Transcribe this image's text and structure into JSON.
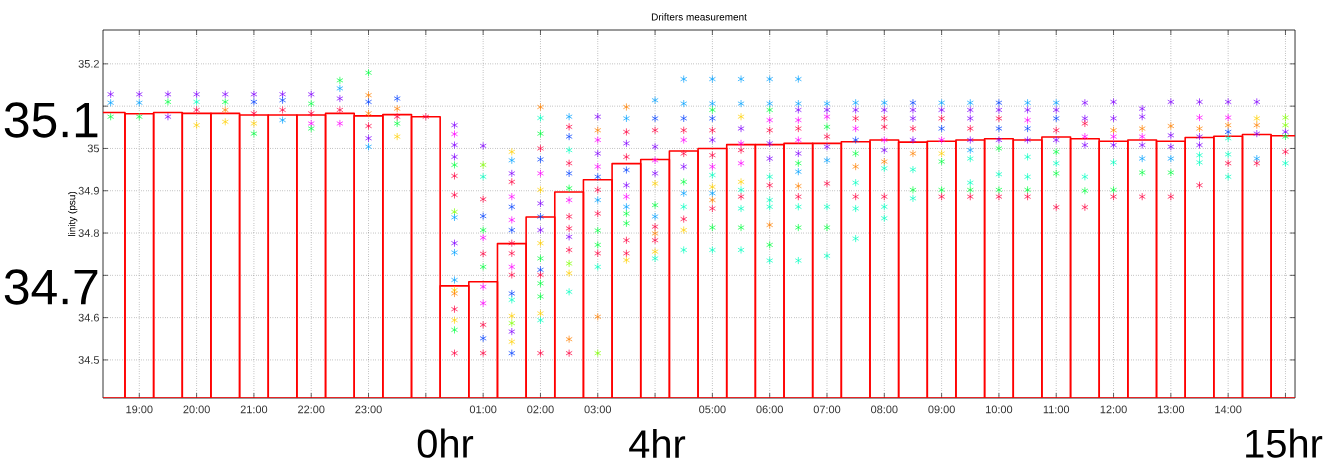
{
  "chart_data": {
    "type": "bar",
    "title": "Drifters measurement",
    "ylabel": "linity (psu)",
    "xlim": [
      "2000-01-01T18:22",
      "2000-01-02T15:10"
    ],
    "ylim": [
      34.41,
      35.28
    ],
    "grid": true,
    "marker": "cross",
    "xticks": [
      {
        "value": "2000-01-01T19:00",
        "label": "19:00"
      },
      {
        "value": "2000-01-01T20:00",
        "label": "20:00"
      },
      {
        "value": "2000-01-01T21:00",
        "label": "21:00"
      },
      {
        "value": "2000-01-01T22:00",
        "label": "22:00"
      },
      {
        "value": "2000-01-01T23:00",
        "label": "23:00"
      },
      {
        "value": "2000-01-02T00:00",
        "label": null
      },
      {
        "value": "2000-01-02T01:00",
        "label": "01:00"
      },
      {
        "value": "2000-01-02T02:00",
        "label": "02:00"
      },
      {
        "value": "2000-01-02T03:00",
        "label": "03:00"
      },
      {
        "value": "2000-01-02T04:00",
        "label": null
      },
      {
        "value": "2000-01-02T05:00",
        "label": "05:00"
      },
      {
        "value": "2000-01-02T06:00",
        "label": "06:00"
      },
      {
        "value": "2000-01-02T07:00",
        "label": "07:00"
      },
      {
        "value": "2000-01-02T08:00",
        "label": "08:00"
      },
      {
        "value": "2000-01-02T09:00",
        "label": "09:00"
      },
      {
        "value": "2000-01-02T10:00",
        "label": "10:00"
      },
      {
        "value": "2000-01-02T11:00",
        "label": "11:00"
      },
      {
        "value": "2000-01-02T12:00",
        "label": "12:00"
      },
      {
        "value": "2000-01-02T13:00",
        "label": "13:00"
      },
      {
        "value": "2000-01-02T14:00",
        "label": "14:00"
      },
      {
        "value": "2000-01-02T15:00",
        "label": null
      }
    ],
    "yticks": [
      34.5,
      34.6,
      {
        "value": 34.7,
        "label": null
      },
      34.8,
      34.9,
      35,
      {
        "value": 35.1,
        "label": null
      },
      35.2
    ],
    "annotations": [
      "35.1",
      "34.7",
      "0hr",
      "4hr",
      "15hr"
    ],
    "series": [
      {
        "color": "#ff0000",
        "x": [
          "2000-01-01T18:30",
          "2000-01-01T19:00",
          "2000-01-01T19:30",
          "2000-01-01T20:00",
          "2000-01-01T20:30",
          "2000-01-01T21:00",
          "2000-01-01T21:30",
          "2000-01-01T22:00",
          "2000-01-01T22:30",
          "2000-01-01T23:00",
          "2000-01-01T23:30",
          "2000-01-02T00:00",
          "2000-01-02T00:30",
          "2000-01-02T01:00",
          "2000-01-02T01:30",
          "2000-01-02T02:00",
          "2000-01-02T02:30",
          "2000-01-02T03:00",
          "2000-01-02T03:30",
          "2000-01-02T04:00",
          "2000-01-02T04:30",
          "2000-01-02T05:00",
          "2000-01-02T05:30",
          "2000-01-02T06:00",
          "2000-01-02T06:30",
          "2000-01-02T07:00",
          "2000-01-02T07:30",
          "2000-01-02T08:00",
          "2000-01-02T08:30",
          "2000-01-02T09:00",
          "2000-01-02T09:30",
          "2000-01-02T10:00",
          "2000-01-02T10:30",
          "2000-01-02T11:00",
          "2000-01-02T11:30",
          "2000-01-02T12:00",
          "2000-01-02T12:30",
          "2000-01-02T13:00",
          "2000-01-02T13:30",
          "2000-01-02T14:00",
          "2000-01-02T14:30",
          "2000-01-02T15:00"
        ],
        "values": [
          35.085,
          35.082,
          35.085,
          35.083,
          35.083,
          35.079,
          35.079,
          35.079,
          35.083,
          35.077,
          35.08,
          35.075,
          34.675,
          34.685,
          34.775,
          34.838,
          34.897,
          34.926,
          34.964,
          34.974,
          34.994,
          35.0,
          35.009,
          35.009,
          35.012,
          35.012,
          35.016,
          35.02,
          35.015,
          35.017,
          35.02,
          35.023,
          35.02,
          35.027,
          35.023,
          35.017,
          35.02,
          35.017,
          35.026,
          35.029,
          35.033,
          35.03
        ]
      },
      {
        "type": "scatter",
        "x": [
          "2000-01-01T18:30",
          "2000-01-01T18:30",
          "2000-01-01T18:30"
        ],
        "values": [
          35.128,
          35.108,
          35.075
        ],
        "colors": [
          "#8000ff",
          "#00a0ff",
          "#00ff40"
        ]
      },
      {
        "type": "scatter",
        "x": [
          "2000-01-01T19:00",
          "2000-01-01T19:00",
          "2000-01-01T19:00"
        ],
        "values": [
          35.128,
          35.108,
          35.075
        ],
        "colors": [
          "#8000ff",
          "#00a0ff",
          "#00ff40"
        ]
      },
      {
        "type": "scatter",
        "x": [
          "2000-01-01T19:30",
          "2000-01-01T19:30",
          "2000-01-01T19:30"
        ],
        "values": [
          35.128,
          35.11,
          35.075
        ],
        "colors": [
          "#8000ff",
          "#00ff40",
          "#8000ff"
        ]
      },
      {
        "type": "scatter",
        "x": [
          "2000-01-01T20:00",
          "2000-01-01T20:00",
          "2000-01-01T20:00",
          "2000-01-01T20:00"
        ],
        "values": [
          35.128,
          35.11,
          35.091,
          35.055
        ],
        "colors": [
          "#8000ff",
          "#00ffc0",
          "#ff0040",
          "#ffd000"
        ]
      },
      {
        "type": "scatter",
        "x": [
          "2000-01-01T20:30",
          "2000-01-01T20:30",
          "2000-01-01T20:30",
          "2000-01-01T20:30"
        ],
        "values": [
          35.128,
          35.11,
          35.091,
          35.063
        ],
        "colors": [
          "#8000ff",
          "#00ff40",
          "#ff8000",
          "#ffd000"
        ]
      },
      {
        "type": "scatter",
        "x": [
          "2000-01-01T21:00",
          "2000-01-01T21:00",
          "2000-01-01T21:00",
          "2000-01-01T21:00",
          "2000-01-01T21:00"
        ],
        "values": [
          35.128,
          35.11,
          35.083,
          35.059,
          35.035
        ],
        "colors": [
          "#8000ff",
          "#0040ff",
          "#ff0040",
          "#ffd000",
          "#00ff40"
        ]
      },
      {
        "type": "scatter",
        "x": [
          "2000-01-01T21:30",
          "2000-01-01T21:30",
          "2000-01-01T21:30",
          "2000-01-01T21:30"
        ],
        "values": [
          35.128,
          35.114,
          35.091,
          35.067
        ],
        "colors": [
          "#8000ff",
          "#0040ff",
          "#ff0040",
          "#00a0ff"
        ]
      },
      {
        "type": "scatter",
        "x": [
          "2000-01-01T22:00",
          "2000-01-01T22:00",
          "2000-01-01T22:00",
          "2000-01-01T22:00",
          "2000-01-01T22:00"
        ],
        "values": [
          35.128,
          35.106,
          35.083,
          35.059,
          35.047
        ],
        "colors": [
          "#8000ff",
          "#00ff40",
          "#ff0040",
          "#ff00ff",
          "#00ff40"
        ]
      },
      {
        "type": "scatter",
        "x": [
          "2000-01-01T22:30",
          "2000-01-01T22:30",
          "2000-01-01T22:30",
          "2000-01-01T22:30",
          "2000-01-01T22:30"
        ],
        "values": [
          35.161,
          35.142,
          35.118,
          35.091,
          35.059
        ],
        "colors": [
          "#00ff40",
          "#00a0ff",
          "#8000ff",
          "#ff0040",
          "#ff00ff"
        ]
      },
      {
        "type": "scatter",
        "x": [
          "2000-01-01T23:00",
          "2000-01-01T23:00",
          "2000-01-01T23:00",
          "2000-01-01T23:00",
          "2000-01-01T23:00",
          "2000-01-01T23:00",
          "2000-01-01T23:00"
        ],
        "values": [
          35.179,
          35.126,
          35.11,
          35.083,
          35.053,
          35.024,
          35.004
        ],
        "colors": [
          "#00ff40",
          "#ff8000",
          "#0040ff",
          "#ff8000",
          "#ff0040",
          "#8000ff",
          "#00a0ff"
        ]
      },
      {
        "type": "scatter",
        "x": [
          "2000-01-01T23:30",
          "2000-01-01T23:30",
          "2000-01-01T23:30",
          "2000-01-01T23:30",
          "2000-01-01T23:30"
        ],
        "values": [
          35.118,
          35.094,
          35.075,
          35.059,
          35.028
        ],
        "colors": [
          "#0040ff",
          "#ff8000",
          "#ff0040",
          "#00ff40",
          "#ffd000"
        ]
      },
      {
        "type": "scatter",
        "x": [
          "2000-01-02T00:00"
        ],
        "values": [
          35.075
        ],
        "colors": [
          "#ff0040"
        ]
      },
      {
        "type": "scatter",
        "x": [
          "2000-01-02T00:30",
          "2000-01-02T00:30",
          "2000-01-02T00:30",
          "2000-01-02T00:30",
          "2000-01-02T00:30",
          "2000-01-02T00:30",
          "2000-01-02T00:30",
          "2000-01-02T00:30",
          "2000-01-02T00:30",
          "2000-01-02T00:30",
          "2000-01-02T00:30",
          "2000-01-02T00:30",
          "2000-01-02T00:30",
          "2000-01-02T00:30",
          "2000-01-02T00:30",
          "2000-01-02T00:30",
          "2000-01-02T00:30",
          "2000-01-02T00:30"
        ],
        "values": [
          35.055,
          35.034,
          35.008,
          34.98,
          34.961,
          34.935,
          34.89,
          34.85,
          34.837,
          34.776,
          34.754,
          34.689,
          34.665,
          34.657,
          34.62,
          34.594,
          34.571,
          34.516
        ],
        "colors": [
          "#8000ff",
          "#ff00ff",
          "#8000ff",
          "#8000ff",
          "#00ff40",
          "#ff0040",
          "#ff0040",
          "#80ff00",
          "#00a0ff",
          "#8000ff",
          "#00a0ff",
          "#00a0ff",
          "#ffd000",
          "#ff8000",
          "#ff0040",
          "#ffd000",
          "#00ff40",
          "#ff0040"
        ]
      },
      {
        "type": "scatter",
        "x": [
          "2000-01-02T01:00",
          "2000-01-02T01:00",
          "2000-01-02T01:00",
          "2000-01-02T01:00",
          "2000-01-02T01:00",
          "2000-01-02T01:00",
          "2000-01-02T01:00",
          "2000-01-02T01:00",
          "2000-01-02T01:00",
          "2000-01-02T01:00",
          "2000-01-02T01:00",
          "2000-01-02T01:00",
          "2000-01-02T01:00",
          "2000-01-02T01:00"
        ],
        "values": [
          35.006,
          34.961,
          34.933,
          34.88,
          34.84,
          34.807,
          34.789,
          34.751,
          34.72,
          34.673,
          34.634,
          34.583,
          34.551,
          34.516
        ],
        "colors": [
          "#8000ff",
          "#80ff00",
          "#00ffc0",
          "#ff0040",
          "#0040ff",
          "#00ff40",
          "#ff00ff",
          "#ff0040",
          "#00ff40",
          "#ff00ff",
          "#ff00ff",
          "#ff0040",
          "#0040ff",
          "#ff0040"
        ]
      },
      {
        "type": "scatter",
        "x": [
          "2000-01-02T01:30",
          "2000-01-02T01:30",
          "2000-01-02T01:30",
          "2000-01-02T01:30",
          "2000-01-02T01:30",
          "2000-01-02T01:30",
          "2000-01-02T01:30",
          "2000-01-02T01:30",
          "2000-01-02T01:30",
          "2000-01-02T01:30",
          "2000-01-02T01:30",
          "2000-01-02T01:30",
          "2000-01-02T01:30",
          "2000-01-02T01:30",
          "2000-01-02T01:30",
          "2000-01-02T01:30",
          "2000-01-02T01:30",
          "2000-01-02T01:30",
          "2000-01-02T01:30"
        ],
        "values": [
          34.992,
          34.972,
          34.941,
          34.921,
          34.886,
          34.862,
          34.831,
          34.807,
          34.776,
          34.752,
          34.72,
          34.701,
          34.657,
          34.642,
          34.604,
          34.587,
          34.567,
          34.543,
          34.516
        ],
        "colors": [
          "#ffd000",
          "#00a0ff",
          "#8000ff",
          "#ff0040",
          "#ff00ff",
          "#0040ff",
          "#ff00ff",
          "#0040ff",
          "#ff0040",
          "#ff0040",
          "#ff00ff",
          "#ff0040",
          "#0040ff",
          "#00ffc0",
          "#ffd000",
          "#80ff00",
          "#8000ff",
          "#ffd000",
          "#0040ff"
        ]
      },
      {
        "type": "scatter",
        "x": [
          "2000-01-02T02:00",
          "2000-01-02T02:00",
          "2000-01-02T02:00",
          "2000-01-02T02:00",
          "2000-01-02T02:00",
          "2000-01-02T02:00",
          "2000-01-02T02:00",
          "2000-01-02T02:00",
          "2000-01-02T02:00",
          "2000-01-02T02:00",
          "2000-01-02T02:00",
          "2000-01-02T02:00",
          "2000-01-02T02:00",
          "2000-01-02T02:00",
          "2000-01-02T02:00",
          "2000-01-02T02:00",
          "2000-01-02T02:00",
          "2000-01-02T02:00",
          "2000-01-02T02:00"
        ],
        "values": [
          35.098,
          35.072,
          35.035,
          35.0,
          34.974,
          34.941,
          34.902,
          34.87,
          34.839,
          34.807,
          34.776,
          34.74,
          34.713,
          34.701,
          34.681,
          34.65,
          34.61,
          34.594,
          34.516
        ],
        "colors": [
          "#ff8000",
          "#00ffc0",
          "#00ff40",
          "#ff0040",
          "#0040ff",
          "#ff00ff",
          "#ffd000",
          "#8000ff",
          "#0040ff",
          "#8000ff",
          "#ffd000",
          "#00ff40",
          "#0040ff",
          "#ff0040",
          "#00ff40",
          "#00ff40",
          "#ffd000",
          "#00ffc0",
          "#ff0040"
        ]
      },
      {
        "type": "scatter",
        "x": [
          "2000-01-02T02:30",
          "2000-01-02T02:30",
          "2000-01-02T02:30",
          "2000-01-02T02:30",
          "2000-01-02T02:30",
          "2000-01-02T02:30",
          "2000-01-02T02:30",
          "2000-01-02T02:30",
          "2000-01-02T02:30",
          "2000-01-02T02:30",
          "2000-01-02T02:30",
          "2000-01-02T02:30",
          "2000-01-02T02:30",
          "2000-01-02T02:30",
          "2000-01-02T02:30",
          "2000-01-02T02:30",
          "2000-01-02T02:30"
        ],
        "values": [
          35.075,
          35.051,
          35.028,
          34.996,
          34.965,
          34.941,
          34.906,
          34.878,
          34.839,
          34.811,
          34.791,
          34.76,
          34.728,
          34.705,
          34.661,
          34.549,
          34.516
        ],
        "colors": [
          "#00a0ff",
          "#ff0040",
          "#0040ff",
          "#00ffc0",
          "#ff0040",
          "#0040ff",
          "#00ff40",
          "#ff00ff",
          "#ff0040",
          "#ff0040",
          "#8000ff",
          "#ff0040",
          "#80ff00",
          "#ffd000",
          "#00ffc0",
          "#ff8000",
          "#ff0040"
        ]
      },
      {
        "type": "scatter",
        "x": [
          "2000-01-02T03:00",
          "2000-01-02T03:00",
          "2000-01-02T03:00",
          "2000-01-02T03:00",
          "2000-01-02T03:00",
          "2000-01-02T03:00",
          "2000-01-02T03:00",
          "2000-01-02T03:00",
          "2000-01-02T03:00",
          "2000-01-02T03:00",
          "2000-01-02T03:00",
          "2000-01-02T03:00",
          "2000-01-02T03:00",
          "2000-01-02T03:00",
          "2000-01-02T03:00"
        ],
        "values": [
          35.075,
          35.043,
          35.02,
          34.988,
          34.957,
          34.933,
          34.902,
          34.878,
          34.846,
          34.806,
          34.772,
          34.752,
          34.72,
          34.602,
          34.516
        ],
        "colors": [
          "#8000ff",
          "#ff8000",
          "#ff00ff",
          "#8000ff",
          "#ff00ff",
          "#0040ff",
          "#ff0040",
          "#00a0ff",
          "#ff0040",
          "#00ff40",
          "#00ff40",
          "#ff0040",
          "#00ffc0",
          "#ff8000",
          "#80ff00"
        ]
      },
      {
        "type": "scatter",
        "x": [
          "2000-01-02T03:30",
          "2000-01-02T03:30",
          "2000-01-02T03:30",
          "2000-01-02T03:30",
          "2000-01-02T03:30",
          "2000-01-02T03:30",
          "2000-01-02T03:30",
          "2000-01-02T03:30",
          "2000-01-02T03:30",
          "2000-01-02T03:30",
          "2000-01-02T03:30",
          "2000-01-02T03:30",
          "2000-01-02T03:30",
          "2000-01-02T03:30"
        ],
        "values": [
          35.098,
          35.071,
          35.039,
          35.012,
          34.98,
          34.949,
          34.913,
          34.886,
          34.862,
          34.846,
          34.823,
          34.783,
          34.752,
          34.736
        ],
        "colors": [
          "#ff8000",
          "#00a0ff",
          "#ff0040",
          "#8000ff",
          "#ff0040",
          "#0040ff",
          "#8000ff",
          "#ff00ff",
          "#00a0ff",
          "#00ff40",
          "#00ff40",
          "#ff0040",
          "#ff0040",
          "#ffd000"
        ]
      },
      {
        "type": "scatter",
        "x": [
          "2000-01-02T04:00",
          "2000-01-02T04:00",
          "2000-01-02T04:00",
          "2000-01-02T04:00",
          "2000-01-02T04:00",
          "2000-01-02T04:00",
          "2000-01-02T04:00",
          "2000-01-02T04:00",
          "2000-01-02T04:00",
          "2000-01-02T04:00",
          "2000-01-02T04:00",
          "2000-01-02T04:00",
          "2000-01-02T04:00",
          "2000-01-02T04:00"
        ],
        "values": [
          35.114,
          35.071,
          35.043,
          35.004,
          34.972,
          34.941,
          34.917,
          34.866,
          34.839,
          34.815,
          34.799,
          34.783,
          34.756,
          34.74
        ],
        "colors": [
          "#00a0ff",
          "#0040ff",
          "#ff0040",
          "#8000ff",
          "#ff00ff",
          "#8000ff",
          "#ffd000",
          "#00ff40",
          "#00a0ff",
          "#ff0040",
          "#ff8000",
          "#ff0040",
          "#ffd000",
          "#00ffc0"
        ]
      },
      {
        "type": "scatter",
        "x": [
          "2000-01-02T04:30",
          "2000-01-02T04:30",
          "2000-01-02T04:30",
          "2000-01-02T04:30",
          "2000-01-02T04:30",
          "2000-01-02T04:30",
          "2000-01-02T04:30",
          "2000-01-02T04:30",
          "2000-01-02T04:30",
          "2000-01-02T04:30",
          "2000-01-02T04:30",
          "2000-01-02T04:30",
          "2000-01-02T04:30"
        ],
        "values": [
          35.164,
          35.106,
          35.071,
          35.043,
          35.02,
          34.988,
          34.957,
          34.921,
          34.894,
          34.862,
          34.833,
          34.807,
          34.76
        ],
        "colors": [
          "#00a0ff",
          "#00a0ff",
          "#0040ff",
          "#ff0040",
          "#ff00ff",
          "#ff0040",
          "#8000ff",
          "#00ff40",
          "#00a0ff",
          "#00ffc0",
          "#ff0040",
          "#ffd000",
          "#00ffc0"
        ]
      },
      {
        "type": "scatter",
        "x": [
          "2000-01-02T05:00",
          "2000-01-02T05:00",
          "2000-01-02T05:00",
          "2000-01-02T05:00",
          "2000-01-02T05:00",
          "2000-01-02T05:00",
          "2000-01-02T05:00",
          "2000-01-02T05:00",
          "2000-01-02T05:00",
          "2000-01-02T05:00",
          "2000-01-02T05:00",
          "2000-01-02T05:00",
          "2000-01-02T05:00",
          "2000-01-02T05:00",
          "2000-01-02T05:00"
        ],
        "values": [
          35.164,
          35.106,
          35.091,
          35.071,
          35.043,
          35.02,
          34.984,
          34.957,
          34.937,
          34.909,
          34.894,
          34.878,
          34.858,
          34.813,
          34.76
        ],
        "colors": [
          "#00a0ff",
          "#00a0ff",
          "#00ff40",
          "#0040ff",
          "#ff0040",
          "#8000ff",
          "#ff0040",
          "#ff00ff",
          "#00ffc0",
          "#ffd000",
          "#00a0ff",
          "#ff8000",
          "#ff0040",
          "#00ff40",
          "#00ffc0"
        ]
      },
      {
        "type": "scatter",
        "x": [
          "2000-01-02T05:30",
          "2000-01-02T05:30",
          "2000-01-02T05:30",
          "2000-01-02T05:30",
          "2000-01-02T05:30",
          "2000-01-02T05:30",
          "2000-01-02T05:30",
          "2000-01-02T05:30",
          "2000-01-02T05:30",
          "2000-01-02T05:30",
          "2000-01-02T05:30",
          "2000-01-02T05:30",
          "2000-01-02T05:30"
        ],
        "values": [
          35.164,
          35.106,
          35.075,
          35.047,
          35.012,
          34.996,
          34.965,
          34.921,
          34.902,
          34.886,
          34.858,
          34.813,
          34.76
        ],
        "colors": [
          "#00a0ff",
          "#00a0ff",
          "#ffd000",
          "#8000ff",
          "#ff00ff",
          "#ff0040",
          "#ff00ff",
          "#ffd000",
          "#00ffc0",
          "#ff0040",
          "#00ffc0",
          "#00ff40",
          "#00ffc0"
        ]
      },
      {
        "type": "scatter",
        "x": [
          "2000-01-02T06:00",
          "2000-01-02T06:00",
          "2000-01-02T06:00",
          "2000-01-02T06:00",
          "2000-01-02T06:00",
          "2000-01-02T06:00",
          "2000-01-02T06:00",
          "2000-01-02T06:00",
          "2000-01-02T06:00",
          "2000-01-02T06:00",
          "2000-01-02T06:00",
          "2000-01-02T06:00",
          "2000-01-02T06:00",
          "2000-01-02T06:00"
        ],
        "values": [
          35.164,
          35.106,
          35.091,
          35.067,
          35.043,
          35.012,
          34.976,
          34.933,
          34.913,
          34.878,
          34.862,
          34.819,
          34.772,
          34.735
        ],
        "colors": [
          "#00a0ff",
          "#00a0ff",
          "#00ff40",
          "#ff00ff",
          "#ff0040",
          "#8000ff",
          "#8000ff",
          "#00ffc0",
          "#ff0040",
          "#00ffc0",
          "#00ffc0",
          "#ff8000",
          "#00ff40",
          "#00ffc0"
        ]
      },
      {
        "type": "scatter",
        "x": [
          "2000-01-02T06:30",
          "2000-01-02T06:30",
          "2000-01-02T06:30",
          "2000-01-02T06:30",
          "2000-01-02T06:30",
          "2000-01-02T06:30",
          "2000-01-02T06:30",
          "2000-01-02T06:30",
          "2000-01-02T06:30",
          "2000-01-02T06:30",
          "2000-01-02T06:30",
          "2000-01-02T06:30",
          "2000-01-02T06:30",
          "2000-01-02T06:30"
        ],
        "values": [
          35.164,
          35.106,
          35.091,
          35.067,
          35.047,
          35.02,
          34.988,
          34.965,
          34.945,
          34.911,
          34.886,
          34.862,
          34.813,
          34.735
        ],
        "colors": [
          "#00a0ff",
          "#00a0ff",
          "#8000ff",
          "#ff00ff",
          "#ff0040",
          "#ff00ff",
          "#8000ff",
          "#00ff40",
          "#00a0ff",
          "#ff8000",
          "#ff0040",
          "#00ffc0",
          "#00ff40",
          "#00ffc0"
        ]
      },
      {
        "type": "scatter",
        "x": [
          "2000-01-02T07:00",
          "2000-01-02T07:00",
          "2000-01-02T07:00",
          "2000-01-02T07:00",
          "2000-01-02T07:00",
          "2000-01-02T07:00",
          "2000-01-02T07:00",
          "2000-01-02T07:00",
          "2000-01-02T07:00",
          "2000-01-02T07:00",
          "2000-01-02T07:00"
        ],
        "values": [
          35.106,
          35.091,
          35.075,
          35.051,
          35.028,
          35.004,
          34.972,
          34.917,
          34.862,
          34.813,
          34.746
        ],
        "colors": [
          "#00a0ff",
          "#8000ff",
          "#ff00ff",
          "#00ff40",
          "#ff0040",
          "#8000ff",
          "#00a0ff",
          "#ff0040",
          "#00ffc0",
          "#00ff40",
          "#00ffc0"
        ]
      },
      {
        "type": "scatter",
        "x": [
          "2000-01-02T07:30",
          "2000-01-02T07:30",
          "2000-01-02T07:30",
          "2000-01-02T07:30",
          "2000-01-02T07:30",
          "2000-01-02T07:30",
          "2000-01-02T07:30",
          "2000-01-02T07:30",
          "2000-01-02T07:30",
          "2000-01-02T07:30",
          "2000-01-02T07:30"
        ],
        "values": [
          35.108,
          35.091,
          35.071,
          35.047,
          35.02,
          34.988,
          34.957,
          34.919,
          34.886,
          34.858,
          34.787
        ],
        "colors": [
          "#00a0ff",
          "#8000ff",
          "#ff0040",
          "#ff00ff",
          "#0040ff",
          "#00ff40",
          "#ff8000",
          "#00ffc0",
          "#ff0040",
          "#00ffc0",
          "#00ffc0"
        ]
      },
      {
        "type": "scatter",
        "x": [
          "2000-01-02T08:00",
          "2000-01-02T08:00",
          "2000-01-02T08:00",
          "2000-01-02T08:00",
          "2000-01-02T08:00",
          "2000-01-02T08:00",
          "2000-01-02T08:00",
          "2000-01-02T08:00",
          "2000-01-02T08:00",
          "2000-01-02T08:00",
          "2000-01-02T08:00"
        ],
        "values": [
          35.108,
          35.091,
          35.071,
          35.051,
          35.02,
          34.996,
          34.969,
          34.953,
          34.886,
          34.862,
          34.835
        ],
        "colors": [
          "#00a0ff",
          "#8000ff",
          "#ff0040",
          "#ff0040",
          "#ff00ff",
          "#8000ff",
          "#ff8000",
          "#00ffc0",
          "#ff0040",
          "#00ffc0",
          "#00ffc0"
        ]
      },
      {
        "type": "scatter",
        "x": [
          "2000-01-02T08:30",
          "2000-01-02T08:30",
          "2000-01-02T08:30",
          "2000-01-02T08:30",
          "2000-01-02T08:30",
          "2000-01-02T08:30",
          "2000-01-02T08:30",
          "2000-01-02T08:30",
          "2000-01-02T08:30"
        ],
        "values": [
          35.108,
          35.091,
          35.071,
          35.047,
          35.02,
          34.988,
          34.95,
          34.902,
          34.882
        ],
        "colors": [
          "#0040ff",
          "#8000ff",
          "#8000ff",
          "#ff0040",
          "#8000ff",
          "#ff8000",
          "#00ffc0",
          "#00ff40",
          "#00ffc0"
        ]
      },
      {
        "type": "scatter",
        "x": [
          "2000-01-02T09:00",
          "2000-01-02T09:00",
          "2000-01-02T09:00",
          "2000-01-02T09:00",
          "2000-01-02T09:00",
          "2000-01-02T09:00",
          "2000-01-02T09:00",
          "2000-01-02T09:00",
          "2000-01-02T09:00"
        ],
        "values": [
          35.108,
          35.091,
          35.071,
          35.047,
          35.02,
          34.988,
          34.969,
          34.902,
          34.886
        ],
        "colors": [
          "#00a0ff",
          "#8000ff",
          "#ff0040",
          "#0040ff",
          "#ff00ff",
          "#ffd000",
          "#00ff40",
          "#00ff40",
          "#ff0040"
        ]
      },
      {
        "type": "scatter",
        "x": [
          "2000-01-02T09:30",
          "2000-01-02T09:30",
          "2000-01-02T09:30",
          "2000-01-02T09:30",
          "2000-01-02T09:30",
          "2000-01-02T09:30",
          "2000-01-02T09:30",
          "2000-01-02T09:30",
          "2000-01-02T09:30",
          "2000-01-02T09:30"
        ],
        "values": [
          35.108,
          35.091,
          35.071,
          35.047,
          35.02,
          34.996,
          34.976,
          34.919,
          34.902,
          34.886
        ],
        "colors": [
          "#00a0ff",
          "#8000ff",
          "#8000ff",
          "#ff0040",
          "#8000ff",
          "#00a0ff",
          "#00ffc0",
          "#00ffc0",
          "#00ff40",
          "#ff0040"
        ]
      },
      {
        "type": "scatter",
        "x": [
          "2000-01-02T10:00",
          "2000-01-02T10:00",
          "2000-01-02T10:00",
          "2000-01-02T10:00",
          "2000-01-02T10:00",
          "2000-01-02T10:00",
          "2000-01-02T10:00",
          "2000-01-02T10:00",
          "2000-01-02T10:00"
        ],
        "values": [
          35.108,
          35.091,
          35.071,
          35.047,
          35.02,
          35.0,
          34.939,
          34.902,
          34.886
        ],
        "colors": [
          "#0040ff",
          "#8000ff",
          "#ff0040",
          "#0040ff",
          "#8000ff",
          "#00ff40",
          "#00ffc0",
          "#00ff40",
          "#ff0040"
        ]
      },
      {
        "type": "scatter",
        "x": [
          "2000-01-02T10:30",
          "2000-01-02T10:30",
          "2000-01-02T10:30",
          "2000-01-02T10:30",
          "2000-01-02T10:30",
          "2000-01-02T10:30",
          "2000-01-02T10:30",
          "2000-01-02T10:30",
          "2000-01-02T10:30"
        ],
        "values": [
          35.108,
          35.091,
          35.067,
          35.047,
          35.02,
          34.98,
          34.933,
          34.902,
          34.886
        ],
        "colors": [
          "#00a0ff",
          "#8000ff",
          "#ff00ff",
          "#0040ff",
          "#8000ff",
          "#00ffc0",
          "#00ffc0",
          "#00ff40",
          "#ff0040"
        ]
      },
      {
        "type": "scatter",
        "x": [
          "2000-01-02T11:00",
          "2000-01-02T11:00",
          "2000-01-02T11:00",
          "2000-01-02T11:00",
          "2000-01-02T11:00",
          "2000-01-02T11:00",
          "2000-01-02T11:00",
          "2000-01-02T11:00",
          "2000-01-02T11:00"
        ],
        "values": [
          35.108,
          35.091,
          35.071,
          35.043,
          35.02,
          34.992,
          34.965,
          34.941,
          34.861
        ],
        "colors": [
          "#00a0ff",
          "#8000ff",
          "#0040ff",
          "#ff0040",
          "#8000ff",
          "#00ff40",
          "#00ffc0",
          "#00ff40",
          "#ff0040"
        ]
      },
      {
        "type": "scatter",
        "x": [
          "2000-01-02T11:30",
          "2000-01-02T11:30",
          "2000-01-02T11:30",
          "2000-01-02T11:30",
          "2000-01-02T11:30",
          "2000-01-02T11:30",
          "2000-01-02T11:30",
          "2000-01-02T11:30"
        ],
        "values": [
          35.108,
          35.071,
          35.059,
          35.028,
          35.008,
          34.933,
          34.9,
          34.861
        ],
        "colors": [
          "#8000ff",
          "#8000ff",
          "#ff0040",
          "#ff00ff",
          "#8000ff",
          "#00ffc0",
          "#00ff40",
          "#ff0040"
        ]
      },
      {
        "type": "scatter",
        "x": [
          "2000-01-02T12:00",
          "2000-01-02T12:00",
          "2000-01-02T12:00",
          "2000-01-02T12:00",
          "2000-01-02T12:00",
          "2000-01-02T12:00",
          "2000-01-02T12:00",
          "2000-01-02T12:00"
        ],
        "values": [
          35.11,
          35.071,
          35.043,
          35.028,
          35.008,
          34.967,
          34.902,
          34.886
        ],
        "colors": [
          "#8000ff",
          "#8000ff",
          "#ff8000",
          "#ff00ff",
          "#8000ff",
          "#00ffc0",
          "#00ff40",
          "#ff0040"
        ]
      },
      {
        "type": "scatter",
        "x": [
          "2000-01-02T12:30",
          "2000-01-02T12:30",
          "2000-01-02T12:30",
          "2000-01-02T12:30",
          "2000-01-02T12:30",
          "2000-01-02T12:30",
          "2000-01-02T12:30",
          "2000-01-02T12:30"
        ],
        "values": [
          35.094,
          35.075,
          35.047,
          35.028,
          35.008,
          34.976,
          34.943,
          34.886
        ],
        "colors": [
          "#8000ff",
          "#8000ff",
          "#ff8000",
          "#ff00ff",
          "#8000ff",
          "#00a0ff",
          "#00ff40",
          "#ff0040"
        ]
      },
      {
        "type": "scatter",
        "x": [
          "2000-01-02T13:00",
          "2000-01-02T13:00",
          "2000-01-02T13:00",
          "2000-01-02T13:00",
          "2000-01-02T13:00",
          "2000-01-02T13:00",
          "2000-01-02T13:00"
        ],
        "values": [
          35.11,
          35.053,
          35.031,
          35.004,
          34.976,
          34.943,
          34.886
        ],
        "colors": [
          "#8000ff",
          "#ff8000",
          "#8000ff",
          "#8000ff",
          "#00a0ff",
          "#00ff40",
          "#ff0040"
        ]
      },
      {
        "type": "scatter",
        "x": [
          "2000-01-02T13:30",
          "2000-01-02T13:30",
          "2000-01-02T13:30",
          "2000-01-02T13:30",
          "2000-01-02T13:30",
          "2000-01-02T13:30",
          "2000-01-02T13:30",
          "2000-01-02T13:30"
        ],
        "values": [
          35.11,
          35.073,
          35.047,
          35.028,
          35.008,
          34.984,
          34.967,
          34.913
        ],
        "colors": [
          "#8000ff",
          "#ff00ff",
          "#ff8000",
          "#8000ff",
          "#8000ff",
          "#00ffc0",
          "#00ffc0",
          "#ff0040"
        ]
      },
      {
        "type": "scatter",
        "x": [
          "2000-01-02T14:00",
          "2000-01-02T14:00",
          "2000-01-02T14:00",
          "2000-01-02T14:00",
          "2000-01-02T14:00",
          "2000-01-02T14:00",
          "2000-01-02T14:00",
          "2000-01-02T14:00"
        ],
        "values": [
          35.11,
          35.073,
          35.055,
          35.039,
          35.024,
          34.986,
          34.965,
          34.933
        ],
        "colors": [
          "#8000ff",
          "#ff00ff",
          "#ff8000",
          "#0040ff",
          "#00ffc0",
          "#00ffc0",
          "#ff0040",
          "#00ffc0"
        ]
      },
      {
        "type": "scatter",
        "x": [
          "2000-01-02T14:30",
          "2000-01-02T14:30",
          "2000-01-02T14:30",
          "2000-01-02T14:30",
          "2000-01-02T14:30",
          "2000-01-02T14:30"
        ],
        "values": [
          35.11,
          35.071,
          35.055,
          35.035,
          34.976,
          34.965
        ],
        "colors": [
          "#8000ff",
          "#ffd000",
          "#ff8000",
          "#8000ff",
          "#00a0ff",
          "#ff0040"
        ]
      },
      {
        "type": "scatter",
        "x": [
          "2000-01-02T15:00",
          "2000-01-02T15:00",
          "2000-01-02T15:00",
          "2000-01-02T15:00",
          "2000-01-02T15:00",
          "2000-01-02T15:00"
        ],
        "values": [
          35.073,
          35.055,
          35.039,
          35.028,
          34.992,
          34.965
        ],
        "colors": [
          "#80ff00",
          "#80ff00",
          "#8000ff",
          "#00ff40",
          "#ff0040",
          "#00ffc0"
        ]
      }
    ]
  }
}
